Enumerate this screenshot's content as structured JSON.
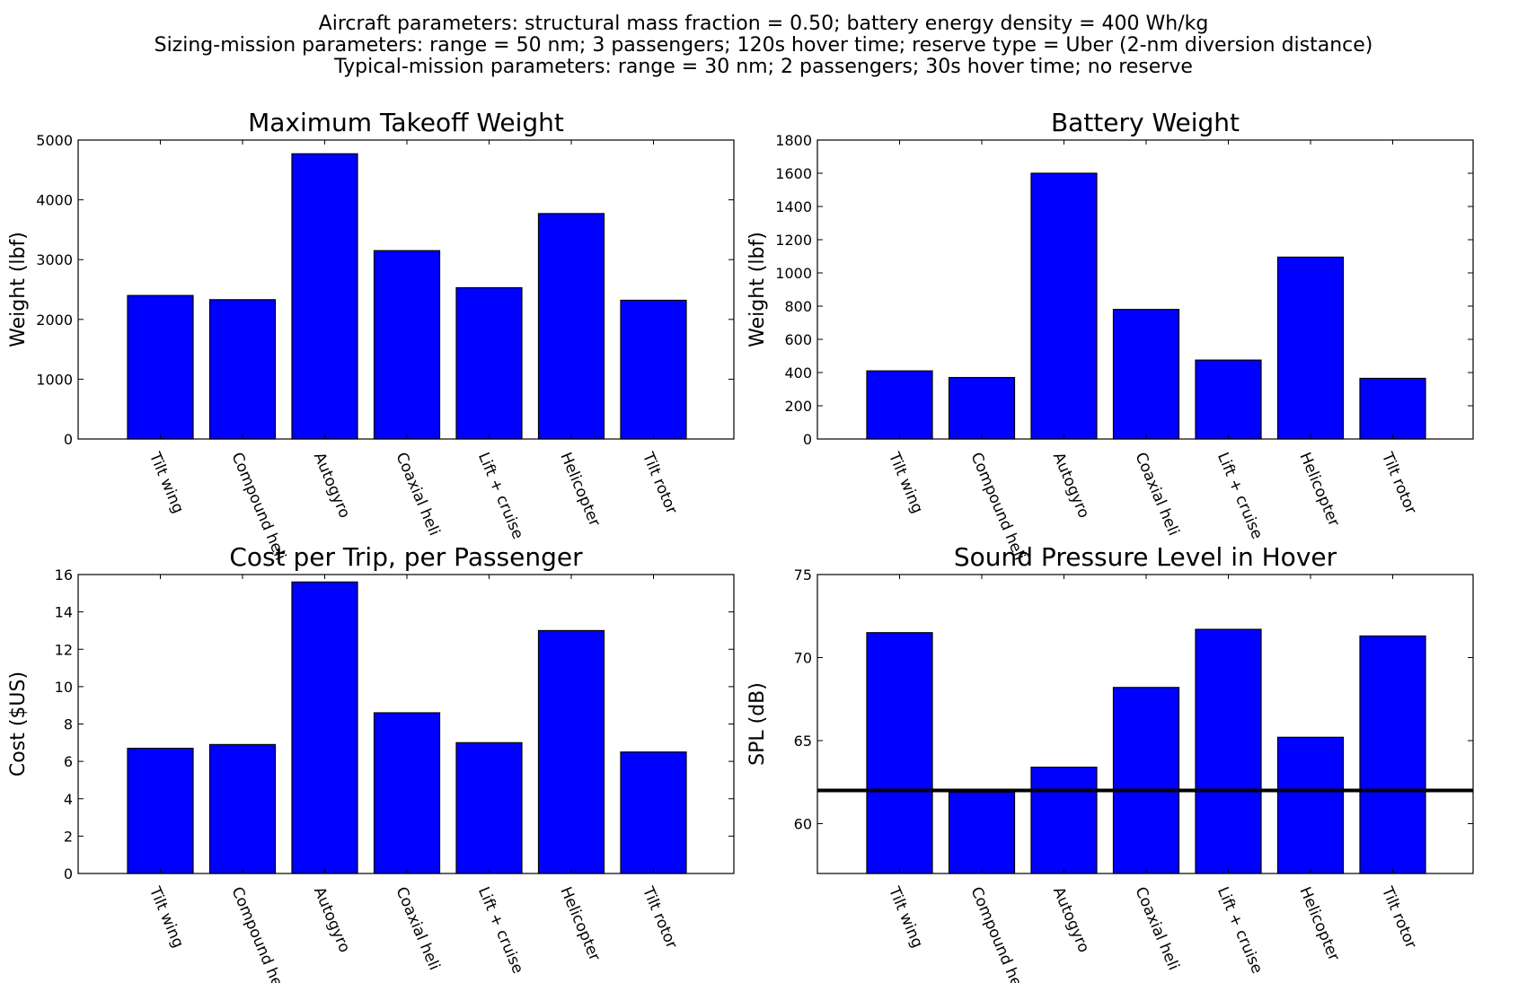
{
  "header": {
    "line1": "Aircraft parameters: structural mass fraction = 0.50; battery energy density = 400 Wh/kg",
    "line2": "Sizing-mission parameters: range = 50 nm; 3 passengers; 120s hover time; reserve type = Uber (2-nm diversion distance)",
    "line3": "Typical-mission parameters: range = 30 nm; 2 passengers; 30s hover time; no reserve"
  },
  "colors": {
    "bar": "#0000ff",
    "edge": "#000000",
    "refline": "#000000"
  },
  "chart_data": [
    {
      "type": "bar",
      "title": "Maximum Takeoff Weight",
      "xlabel": "",
      "ylabel": "Weight (lbf)",
      "categories": [
        "Tilt wing",
        "Compound heli",
        "Autogyro",
        "Coaxial heli",
        "Lift + cruise",
        "Helicopter",
        "Tilt rotor"
      ],
      "values": [
        2400,
        2330,
        4770,
        3150,
        2530,
        3770,
        2320
      ],
      "ylim": [
        0,
        5000
      ],
      "yticks": [
        0,
        1000,
        2000,
        3000,
        4000,
        5000
      ]
    },
    {
      "type": "bar",
      "title": "Battery Weight",
      "xlabel": "",
      "ylabel": "Weight (lbf)",
      "categories": [
        "Tilt wing",
        "Compound heli",
        "Autogyro",
        "Coaxial heli",
        "Lift + cruise",
        "Helicopter",
        "Tilt rotor"
      ],
      "values": [
        410,
        370,
        1600,
        780,
        475,
        1095,
        365
      ],
      "ylim": [
        0,
        1800
      ],
      "yticks": [
        0,
        200,
        400,
        600,
        800,
        1000,
        1200,
        1400,
        1600,
        1800
      ]
    },
    {
      "type": "bar",
      "title": "Cost per Trip, per Passenger",
      "xlabel": "",
      "ylabel": "Cost ($US)",
      "categories": [
        "Tilt wing",
        "Compound heli",
        "Autogyro",
        "Coaxial heli",
        "Lift + cruise",
        "Helicopter",
        "Tilt rotor"
      ],
      "values": [
        6.7,
        6.9,
        15.6,
        8.6,
        7.0,
        13.0,
        6.5
      ],
      "ylim": [
        0,
        16
      ],
      "yticks": [
        0,
        2,
        4,
        6,
        8,
        10,
        12,
        14,
        16
      ]
    },
    {
      "type": "bar",
      "title": "Sound Pressure Level in Hover",
      "xlabel": "",
      "ylabel": "SPL (dB)",
      "categories": [
        "Tilt wing",
        "Compound heli",
        "Autogyro",
        "Coaxial heli",
        "Lift + cruise",
        "Helicopter",
        "Tilt rotor"
      ],
      "values": [
        71.5,
        61.9,
        63.4,
        68.2,
        71.7,
        65.2,
        71.3
      ],
      "ylim": [
        57,
        75
      ],
      "yticks": [
        60,
        65,
        70,
        75
      ],
      "reference_line": 62
    }
  ]
}
